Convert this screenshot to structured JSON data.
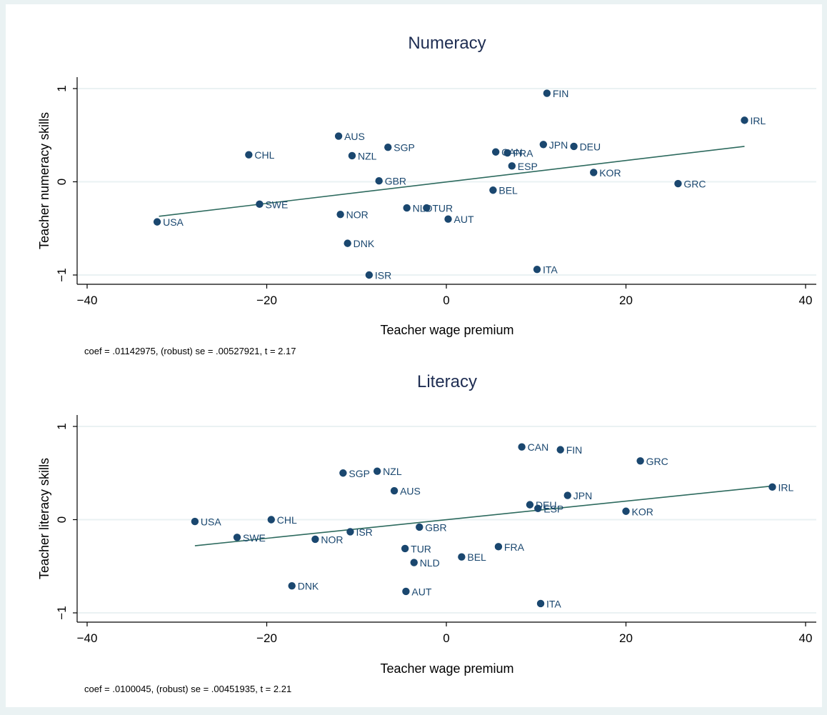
{
  "chart_data": [
    {
      "type": "scatter",
      "title": "Numeracy",
      "xlabel": "Teacher wage premium",
      "ylabel": "Teacher numeracy skills",
      "note": "coef = .01142975, (robust) se = .00527921, t = 2.17",
      "xlim": [
        -40,
        40
      ],
      "ylim": [
        -1,
        1
      ],
      "xticks": [
        -40,
        -20,
        0,
        20,
        40
      ],
      "yticks": [
        -1,
        0,
        1
      ],
      "xtick_labels": [
        "−40",
        "−20",
        "0",
        "20",
        "40"
      ],
      "ytick_labels": [
        "−1",
        "0",
        "1"
      ],
      "grid": true,
      "fit_line": {
        "x": [
          -32,
          33.2
        ],
        "y": [
          -0.37,
          0.38
        ]
      },
      "points": [
        {
          "label": "USA",
          "x": -32.2,
          "y": -0.43
        },
        {
          "label": "CHL",
          "x": -22.0,
          "y": 0.29
        },
        {
          "label": "SWE",
          "x": -20.8,
          "y": -0.24
        },
        {
          "label": "AUS",
          "x": -12.0,
          "y": 0.49
        },
        {
          "label": "NOR",
          "x": -11.8,
          "y": -0.35
        },
        {
          "label": "DNK",
          "x": -11.0,
          "y": -0.66
        },
        {
          "label": "NZL",
          "x": -10.5,
          "y": 0.28
        },
        {
          "label": "ISR",
          "x": -8.6,
          "y": -1.0
        },
        {
          "label": "GBR",
          "x": -7.5,
          "y": 0.01
        },
        {
          "label": "SGP",
          "x": -6.5,
          "y": 0.37
        },
        {
          "label": "NLD",
          "x": -4.4,
          "y": -0.28
        },
        {
          "label": "TUR",
          "x": -2.2,
          "y": -0.28
        },
        {
          "label": "AUT",
          "x": 0.2,
          "y": -0.4
        },
        {
          "label": "BEL",
          "x": 5.2,
          "y": -0.09
        },
        {
          "label": "CAN",
          "x": 5.5,
          "y": 0.32
        },
        {
          "label": "FRA",
          "x": 6.8,
          "y": 0.31
        },
        {
          "label": "ESP",
          "x": 7.3,
          "y": 0.17
        },
        {
          "label": "ITA",
          "x": 10.1,
          "y": -0.94
        },
        {
          "label": "JPN",
          "x": 10.8,
          "y": 0.4
        },
        {
          "label": "FIN",
          "x": 11.2,
          "y": 0.95
        },
        {
          "label": "DEU",
          "x": 14.2,
          "y": 0.38
        },
        {
          "label": "KOR",
          "x": 16.4,
          "y": 0.1
        },
        {
          "label": "GRC",
          "x": 25.8,
          "y": -0.02
        },
        {
          "label": "IRL",
          "x": 33.2,
          "y": 0.66
        }
      ]
    },
    {
      "type": "scatter",
      "title": "Literacy",
      "xlabel": "Teacher wage premium",
      "ylabel": "Teacher literacy skills",
      "note": "coef = .0100045, (robust) se = .00451935, t = 2.21",
      "xlim": [
        -40,
        40
      ],
      "ylim": [
        -1,
        1
      ],
      "xticks": [
        -40,
        -20,
        0,
        20,
        40
      ],
      "yticks": [
        -1,
        0,
        1
      ],
      "xtick_labels": [
        "−40",
        "−20",
        "0",
        "20",
        "40"
      ],
      "ytick_labels": [
        "−1",
        "0",
        "1"
      ],
      "grid": true,
      "fit_line": {
        "x": [
          -28,
          36.2
        ],
        "y": [
          -0.28,
          0.36
        ]
      },
      "points": [
        {
          "label": "USA",
          "x": -28.0,
          "y": -0.02
        },
        {
          "label": "SWE",
          "x": -23.3,
          "y": -0.19
        },
        {
          "label": "CHL",
          "x": -19.5,
          "y": 0.0
        },
        {
          "label": "DNK",
          "x": -17.2,
          "y": -0.71
        },
        {
          "label": "NOR",
          "x": -14.6,
          "y": -0.21
        },
        {
          "label": "SGP",
          "x": -11.5,
          "y": 0.5
        },
        {
          "label": "ISR",
          "x": -10.7,
          "y": -0.13
        },
        {
          "label": "NZL",
          "x": -7.7,
          "y": 0.52
        },
        {
          "label": "AUS",
          "x": -5.8,
          "y": 0.31
        },
        {
          "label": "TUR",
          "x": -4.6,
          "y": -0.31
        },
        {
          "label": "AUT",
          "x": -4.5,
          "y": -0.77
        },
        {
          "label": "NLD",
          "x": -3.6,
          "y": -0.46
        },
        {
          "label": "GBR",
          "x": -3.0,
          "y": -0.08
        },
        {
          "label": "BEL",
          "x": 1.7,
          "y": -0.4
        },
        {
          "label": "FRA",
          "x": 5.8,
          "y": -0.29
        },
        {
          "label": "CAN",
          "x": 8.4,
          "y": 0.78
        },
        {
          "label": "DEU",
          "x": 9.3,
          "y": 0.16
        },
        {
          "label": "ESP",
          "x": 10.2,
          "y": 0.12
        },
        {
          "label": "ITA",
          "x": 10.5,
          "y": -0.9
        },
        {
          "label": "FIN",
          "x": 12.7,
          "y": 0.75
        },
        {
          "label": "JPN",
          "x": 13.5,
          "y": 0.26
        },
        {
          "label": "KOR",
          "x": 20.0,
          "y": 0.09
        },
        {
          "label": "GRC",
          "x": 21.6,
          "y": 0.63
        },
        {
          "label": "IRL",
          "x": 36.3,
          "y": 0.35
        }
      ]
    }
  ],
  "colors": {
    "background": "#eaf2f3",
    "plot_region": "#ffffff",
    "marker": "#1a476f",
    "marker_label": "#1a476f",
    "fit_line": "#2d6a5e",
    "gridline": "#eaf2f3",
    "title": "#1e2d52",
    "axis": "#000000"
  }
}
